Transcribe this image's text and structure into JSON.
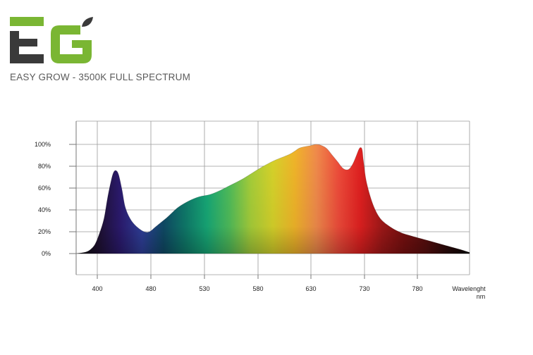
{
  "brand": {
    "logo_text": "EG",
    "subtitle": "EASY GROW - 3500K FULL SPECTRUM",
    "colors": {
      "dark": "#3a3a3a",
      "green": "#7ab633"
    }
  },
  "chart_data": {
    "type": "area",
    "title": "EASY GROW - 3500K FULL SPECTRUM",
    "xlabel": "Wavelenght",
    "xunit": "nm",
    "ylabel": "",
    "x_ticks": [
      400,
      480,
      530,
      580,
      630,
      730,
      780
    ],
    "y_ticks": [
      "0%",
      "20%",
      "40%",
      "60%",
      "80%",
      "100%"
    ],
    "ylim": [
      0,
      100
    ],
    "grid": true,
    "series": [
      {
        "x": [
          360,
          375,
          385,
          395,
          403,
          410,
          415,
          420,
          424,
          428,
          432,
          437,
          442,
          450,
          460,
          470,
          478,
          485,
          495,
          505,
          515,
          525,
          535,
          545,
          555,
          565,
          575,
          585,
          595,
          605,
          610,
          615,
          620,
          630,
          640,
          650,
          660,
          670,
          680,
          690,
          700,
          708,
          715,
          720,
          724,
          726,
          728,
          732,
          738,
          745,
          755,
          765,
          775,
          790,
          805,
          820,
          830
        ],
        "values": [
          0,
          1,
          3,
          8,
          18,
          32,
          50,
          65,
          74,
          76,
          72,
          58,
          42,
          31,
          24,
          20,
          20,
          25,
          33,
          42,
          48,
          52,
          54,
          58,
          63,
          68,
          74,
          80,
          85,
          89,
          91,
          94,
          97,
          99,
          100,
          99,
          96,
          90,
          84,
          78,
          77,
          82,
          90,
          96,
          97,
          94,
          85,
          65,
          45,
          32,
          24,
          19,
          16,
          12,
          8,
          4,
          1
        ],
        "colors": [
          "#0a0a0a",
          "#1e1030",
          "#2b1a6e",
          "#2f3f9a",
          "#0f4a66",
          "#0f7a6a",
          "#17a876",
          "#4fbc5a",
          "#a6ce39",
          "#d6d22a",
          "#f0b429",
          "#f08a4b",
          "#ee4b3a",
          "#e02020",
          "#a01818",
          "#7a1010",
          "#5a0f0f",
          "#2a0a0a",
          "#0a0505"
        ]
      }
    ]
  }
}
